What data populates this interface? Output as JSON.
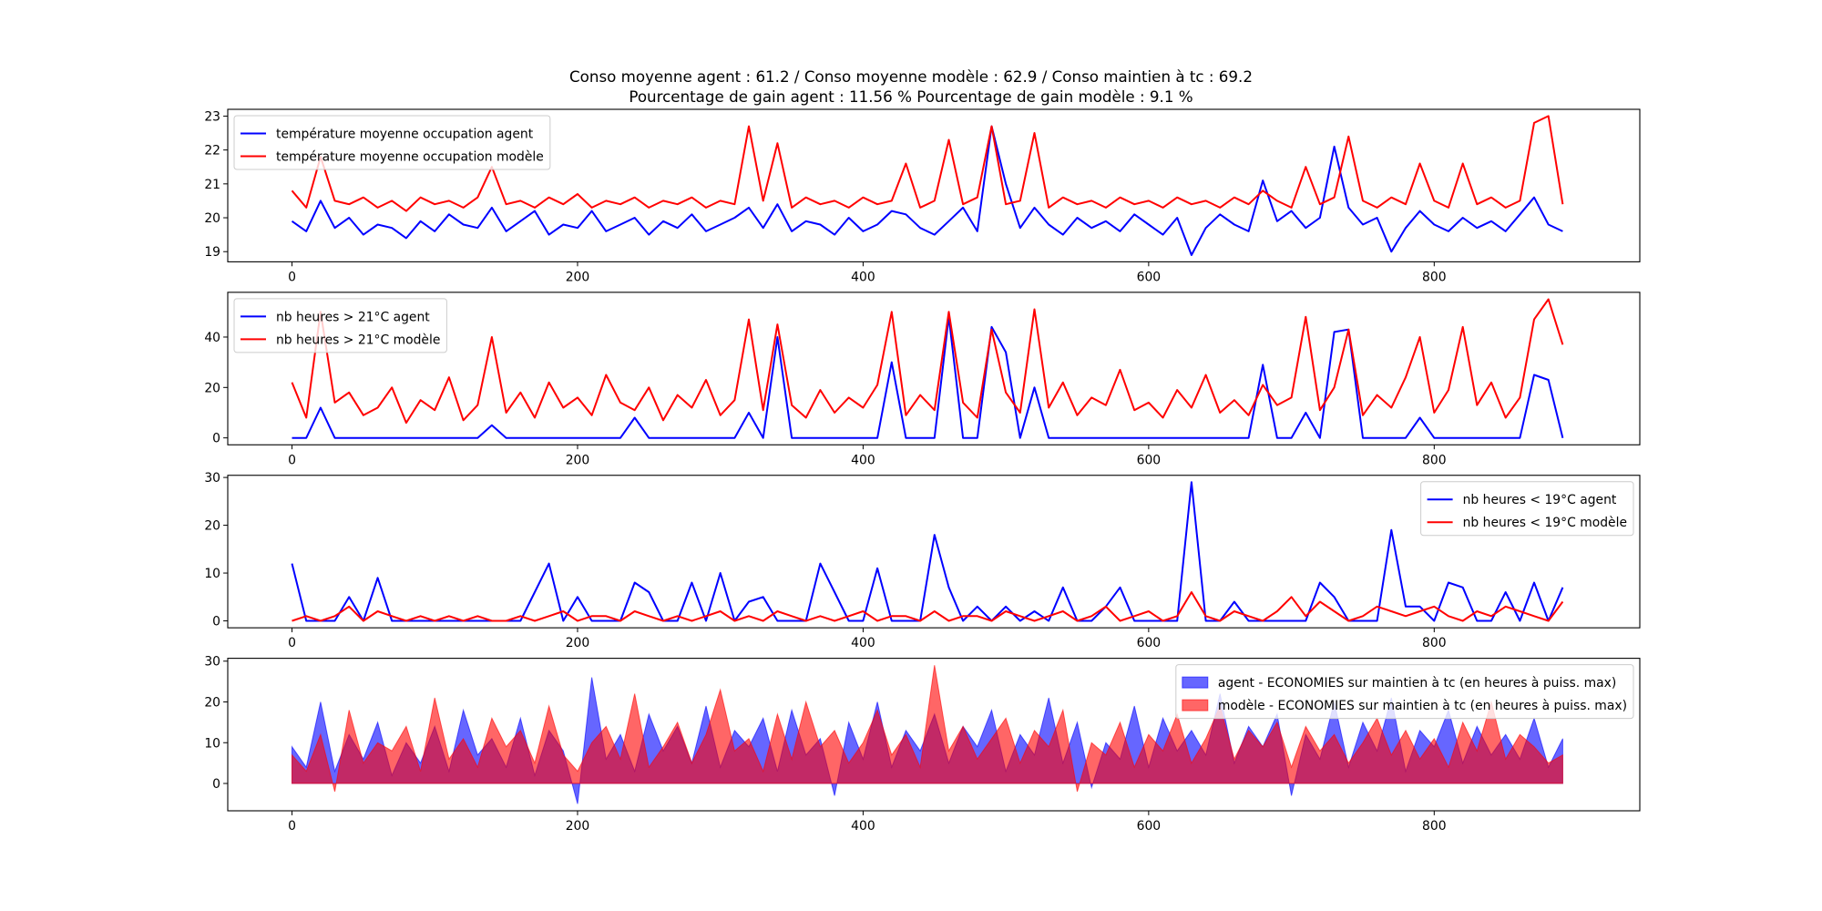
{
  "chart_data": {
    "type": "line",
    "title": [
      "Conso moyenne agent : 61.2 / Conso moyenne modèle : 62.9 / Conso maintien à tc : 69.2",
      "Pourcentage de gain agent : 11.56 % Pourcentage de gain modèle : 9.1 %"
    ],
    "x": [
      0,
      10,
      20,
      30,
      40,
      50,
      60,
      70,
      80,
      90,
      100,
      110,
      120,
      130,
      140,
      150,
      160,
      170,
      180,
      190,
      200,
      210,
      220,
      230,
      240,
      250,
      260,
      270,
      280,
      290,
      300,
      310,
      320,
      330,
      340,
      350,
      360,
      370,
      380,
      390,
      400,
      410,
      420,
      430,
      440,
      450,
      460,
      470,
      480,
      490,
      500,
      510,
      520,
      530,
      540,
      550,
      560,
      570,
      580,
      590,
      600,
      610,
      620,
      630,
      640,
      650,
      660,
      670,
      680,
      690,
      700,
      710,
      720,
      730,
      740,
      750,
      760,
      770,
      780,
      790,
      800,
      810,
      820,
      830,
      840,
      850,
      860,
      870,
      880,
      890
    ],
    "xlim": [
      -45,
      944
    ],
    "xticks": [
      0,
      200,
      400,
      600,
      800
    ],
    "grid": false,
    "subplots": [
      {
        "type": "line",
        "ylim": [
          18.7,
          23.2
        ],
        "yticks": [
          19,
          20,
          21,
          22,
          23
        ],
        "legend_placement": "upper-left",
        "series": [
          {
            "name": "température moyenne occupation agent",
            "color": "#0000ff",
            "values": [
              19.9,
              19.6,
              20.5,
              19.7,
              20.0,
              19.5,
              19.8,
              19.7,
              19.4,
              19.9,
              19.6,
              20.1,
              19.8,
              19.7,
              20.3,
              19.6,
              19.9,
              20.2,
              19.5,
              19.8,
              19.7,
              20.2,
              19.6,
              19.8,
              20.0,
              19.5,
              19.9,
              19.7,
              20.1,
              19.6,
              19.8,
              20.0,
              20.3,
              19.7,
              20.4,
              19.6,
              19.9,
              19.8,
              19.5,
              20.0,
              19.6,
              19.8,
              20.2,
              20.1,
              19.7,
              19.5,
              19.9,
              20.3,
              19.6,
              22.7,
              21.0,
              19.7,
              20.3,
              19.8,
              19.5,
              20.0,
              19.7,
              19.9,
              19.6,
              20.1,
              19.8,
              19.5,
              20.0,
              18.9,
              19.7,
              20.1,
              19.8,
              19.6,
              21.1,
              19.9,
              20.2,
              19.7,
              20.0,
              22.1,
              20.3,
              19.8,
              20.0,
              19.0,
              19.7,
              20.2,
              19.8,
              19.6,
              20.0,
              19.7,
              19.9,
              19.6,
              20.1,
              20.6,
              19.8,
              19.6
            ]
          },
          {
            "name": "température moyenne occupation modèle",
            "color": "#ff0000",
            "values": [
              20.8,
              20.3,
              21.8,
              20.5,
              20.4,
              20.6,
              20.3,
              20.5,
              20.2,
              20.6,
              20.4,
              20.5,
              20.3,
              20.6,
              21.5,
              20.4,
              20.5,
              20.3,
              20.6,
              20.4,
              20.7,
              20.3,
              20.5,
              20.4,
              20.6,
              20.3,
              20.5,
              20.4,
              20.6,
              20.3,
              20.5,
              20.4,
              22.7,
              20.5,
              22.2,
              20.3,
              20.6,
              20.4,
              20.5,
              20.3,
              20.6,
              20.4,
              20.5,
              21.6,
              20.3,
              20.5,
              22.3,
              20.4,
              20.6,
              22.7,
              20.4,
              20.5,
              22.5,
              20.3,
              20.6,
              20.4,
              20.5,
              20.3,
              20.6,
              20.4,
              20.5,
              20.3,
              20.6,
              20.4,
              20.5,
              20.3,
              20.6,
              20.4,
              20.8,
              20.5,
              20.3,
              21.5,
              20.4,
              20.6,
              22.4,
              20.5,
              20.3,
              20.6,
              20.4,
              21.6,
              20.5,
              20.3,
              21.6,
              20.4,
              20.6,
              20.3,
              20.5,
              22.8,
              23.0,
              20.4
            ]
          }
        ]
      },
      {
        "type": "line",
        "ylim": [
          -2.75,
          57.75
        ],
        "yticks": [
          0,
          20,
          40
        ],
        "legend_placement": "upper-left",
        "series": [
          {
            "name": "nb heures > 21°C agent",
            "color": "#0000ff",
            "values": [
              0,
              0,
              12,
              0,
              0,
              0,
              0,
              0,
              0,
              0,
              0,
              0,
              0,
              0,
              5,
              0,
              0,
              0,
              0,
              0,
              0,
              0,
              0,
              0,
              8,
              0,
              0,
              0,
              0,
              0,
              0,
              0,
              10,
              0,
              40,
              0,
              0,
              0,
              0,
              0,
              0,
              0,
              30,
              0,
              0,
              0,
              48,
              0,
              0,
              44,
              34,
              0,
              20,
              0,
              0,
              0,
              0,
              0,
              0,
              0,
              0,
              0,
              0,
              0,
              0,
              0,
              0,
              0,
              29,
              0,
              0,
              10,
              0,
              42,
              43,
              0,
              0,
              0,
              0,
              8,
              0,
              0,
              0,
              0,
              0,
              0,
              0,
              25,
              23,
              0
            ]
          },
          {
            "name": "nb heures > 21°C modèle",
            "color": "#ff0000",
            "values": [
              22,
              8,
              50,
              14,
              18,
              9,
              12,
              20,
              6,
              15,
              11,
              24,
              7,
              13,
              40,
              10,
              18,
              8,
              22,
              12,
              16,
              9,
              25,
              14,
              11,
              20,
              7,
              17,
              12,
              23,
              9,
              15,
              47,
              11,
              45,
              13,
              8,
              19,
              10,
              16,
              12,
              21,
              50,
              9,
              17,
              11,
              50,
              14,
              8,
              43,
              18,
              10,
              51,
              12,
              22,
              9,
              16,
              13,
              27,
              11,
              14,
              8,
              19,
              12,
              25,
              10,
              15,
              9,
              21,
              13,
              16,
              48,
              11,
              20,
              43,
              9,
              17,
              12,
              24,
              40,
              10,
              19,
              44,
              13,
              22,
              8,
              16,
              47,
              55,
              37
            ]
          }
        ]
      },
      {
        "type": "line",
        "ylim": [
          -1.45,
          30.45
        ],
        "yticks": [
          0,
          10,
          20,
          30
        ],
        "legend_placement": "upper-right",
        "series": [
          {
            "name": "nb heures < 19°C agent",
            "color": "#0000ff",
            "values": [
              12,
              0,
              0,
              0,
              5,
              0,
              9,
              0,
              0,
              0,
              0,
              0,
              0,
              0,
              0,
              0,
              0,
              6,
              12,
              0,
              5,
              0,
              0,
              0,
              8,
              6,
              0,
              0,
              8,
              0,
              10,
              0,
              4,
              5,
              0,
              0,
              0,
              12,
              6,
              0,
              0,
              11,
              0,
              0,
              0,
              18,
              7,
              0,
              3,
              0,
              3,
              0,
              2,
              0,
              7,
              0,
              0,
              3,
              7,
              0,
              0,
              0,
              0,
              29,
              0,
              0,
              4,
              0,
              0,
              0,
              0,
              0,
              8,
              5,
              0,
              0,
              0,
              19,
              3,
              3,
              0,
              8,
              7,
              0,
              0,
              6,
              0,
              8,
              0,
              7
            ]
          },
          {
            "name": "nb heures < 19°C modèle",
            "color": "#ff0000",
            "values": [
              0,
              1,
              0,
              1,
              3,
              0,
              2,
              1,
              0,
              1,
              0,
              1,
              0,
              1,
              0,
              0,
              1,
              0,
              1,
              2,
              0,
              1,
              1,
              0,
              2,
              1,
              0,
              1,
              0,
              1,
              2,
              0,
              1,
              0,
              2,
              1,
              0,
              1,
              0,
              1,
              2,
              0,
              1,
              1,
              0,
              2,
              0,
              1,
              1,
              0,
              2,
              1,
              0,
              1,
              2,
              0,
              1,
              3,
              0,
              1,
              2,
              0,
              1,
              6,
              1,
              0,
              2,
              1,
              0,
              2,
              5,
              1,
              4,
              2,
              0,
              1,
              3,
              2,
              1,
              2,
              3,
              1,
              0,
              2,
              1,
              3,
              2,
              1,
              0,
              4
            ]
          }
        ]
      },
      {
        "type": "area",
        "ylim": [
          -6.7,
          30.7
        ],
        "yticks": [
          0,
          10,
          20,
          30
        ],
        "legend_placement": "upper-right",
        "series": [
          {
            "name": "agent - ECONOMIES sur maintien à tc (en heures à puiss. max)",
            "color": "#0000ff",
            "alpha": 0.6,
            "values": [
              9,
              4,
              20,
              3,
              12,
              6,
              15,
              2,
              10,
              5,
              14,
              3,
              18,
              7,
              11,
              4,
              16,
              2,
              13,
              8,
              -5,
              26,
              6,
              12,
              3,
              17,
              8,
              14,
              5,
              19,
              4,
              13,
              9,
              16,
              3,
              18,
              7,
              11,
              -3,
              15,
              6,
              20,
              4,
              13,
              8,
              17,
              5,
              14,
              9,
              18,
              3,
              12,
              7,
              21,
              5,
              15,
              -1,
              10,
              6,
              19,
              4,
              16,
              8,
              13,
              7,
              22,
              5,
              14,
              9,
              17,
              -3,
              12,
              6,
              20,
              4,
              15,
              8,
              21,
              3,
              13,
              9,
              18,
              5,
              14,
              7,
              12,
              6,
              16,
              4,
              11
            ]
          },
          {
            "name": "modèle - ECONOMIES sur maintien à tc (en heures à puiss. max)",
            "color": "#ff0000",
            "alpha": 0.6,
            "values": [
              7,
              3,
              12,
              -2,
              18,
              5,
              10,
              8,
              14,
              3,
              21,
              6,
              11,
              4,
              16,
              9,
              13,
              5,
              19,
              7,
              3,
              10,
              14,
              6,
              22,
              4,
              9,
              15,
              5,
              12,
              23,
              8,
              11,
              3,
              17,
              6,
              20,
              9,
              13,
              5,
              10,
              18,
              7,
              12,
              4,
              29,
              8,
              14,
              6,
              11,
              16,
              5,
              13,
              9,
              18,
              -2,
              10,
              7,
              15,
              4,
              12,
              8,
              17,
              5,
              11,
              19,
              6,
              13,
              9,
              15,
              4,
              14,
              8,
              12,
              5,
              10,
              16,
              7,
              13,
              6,
              11,
              4,
              15,
              8,
              20,
              6,
              12,
              9,
              5,
              7
            ]
          }
        ]
      }
    ]
  }
}
